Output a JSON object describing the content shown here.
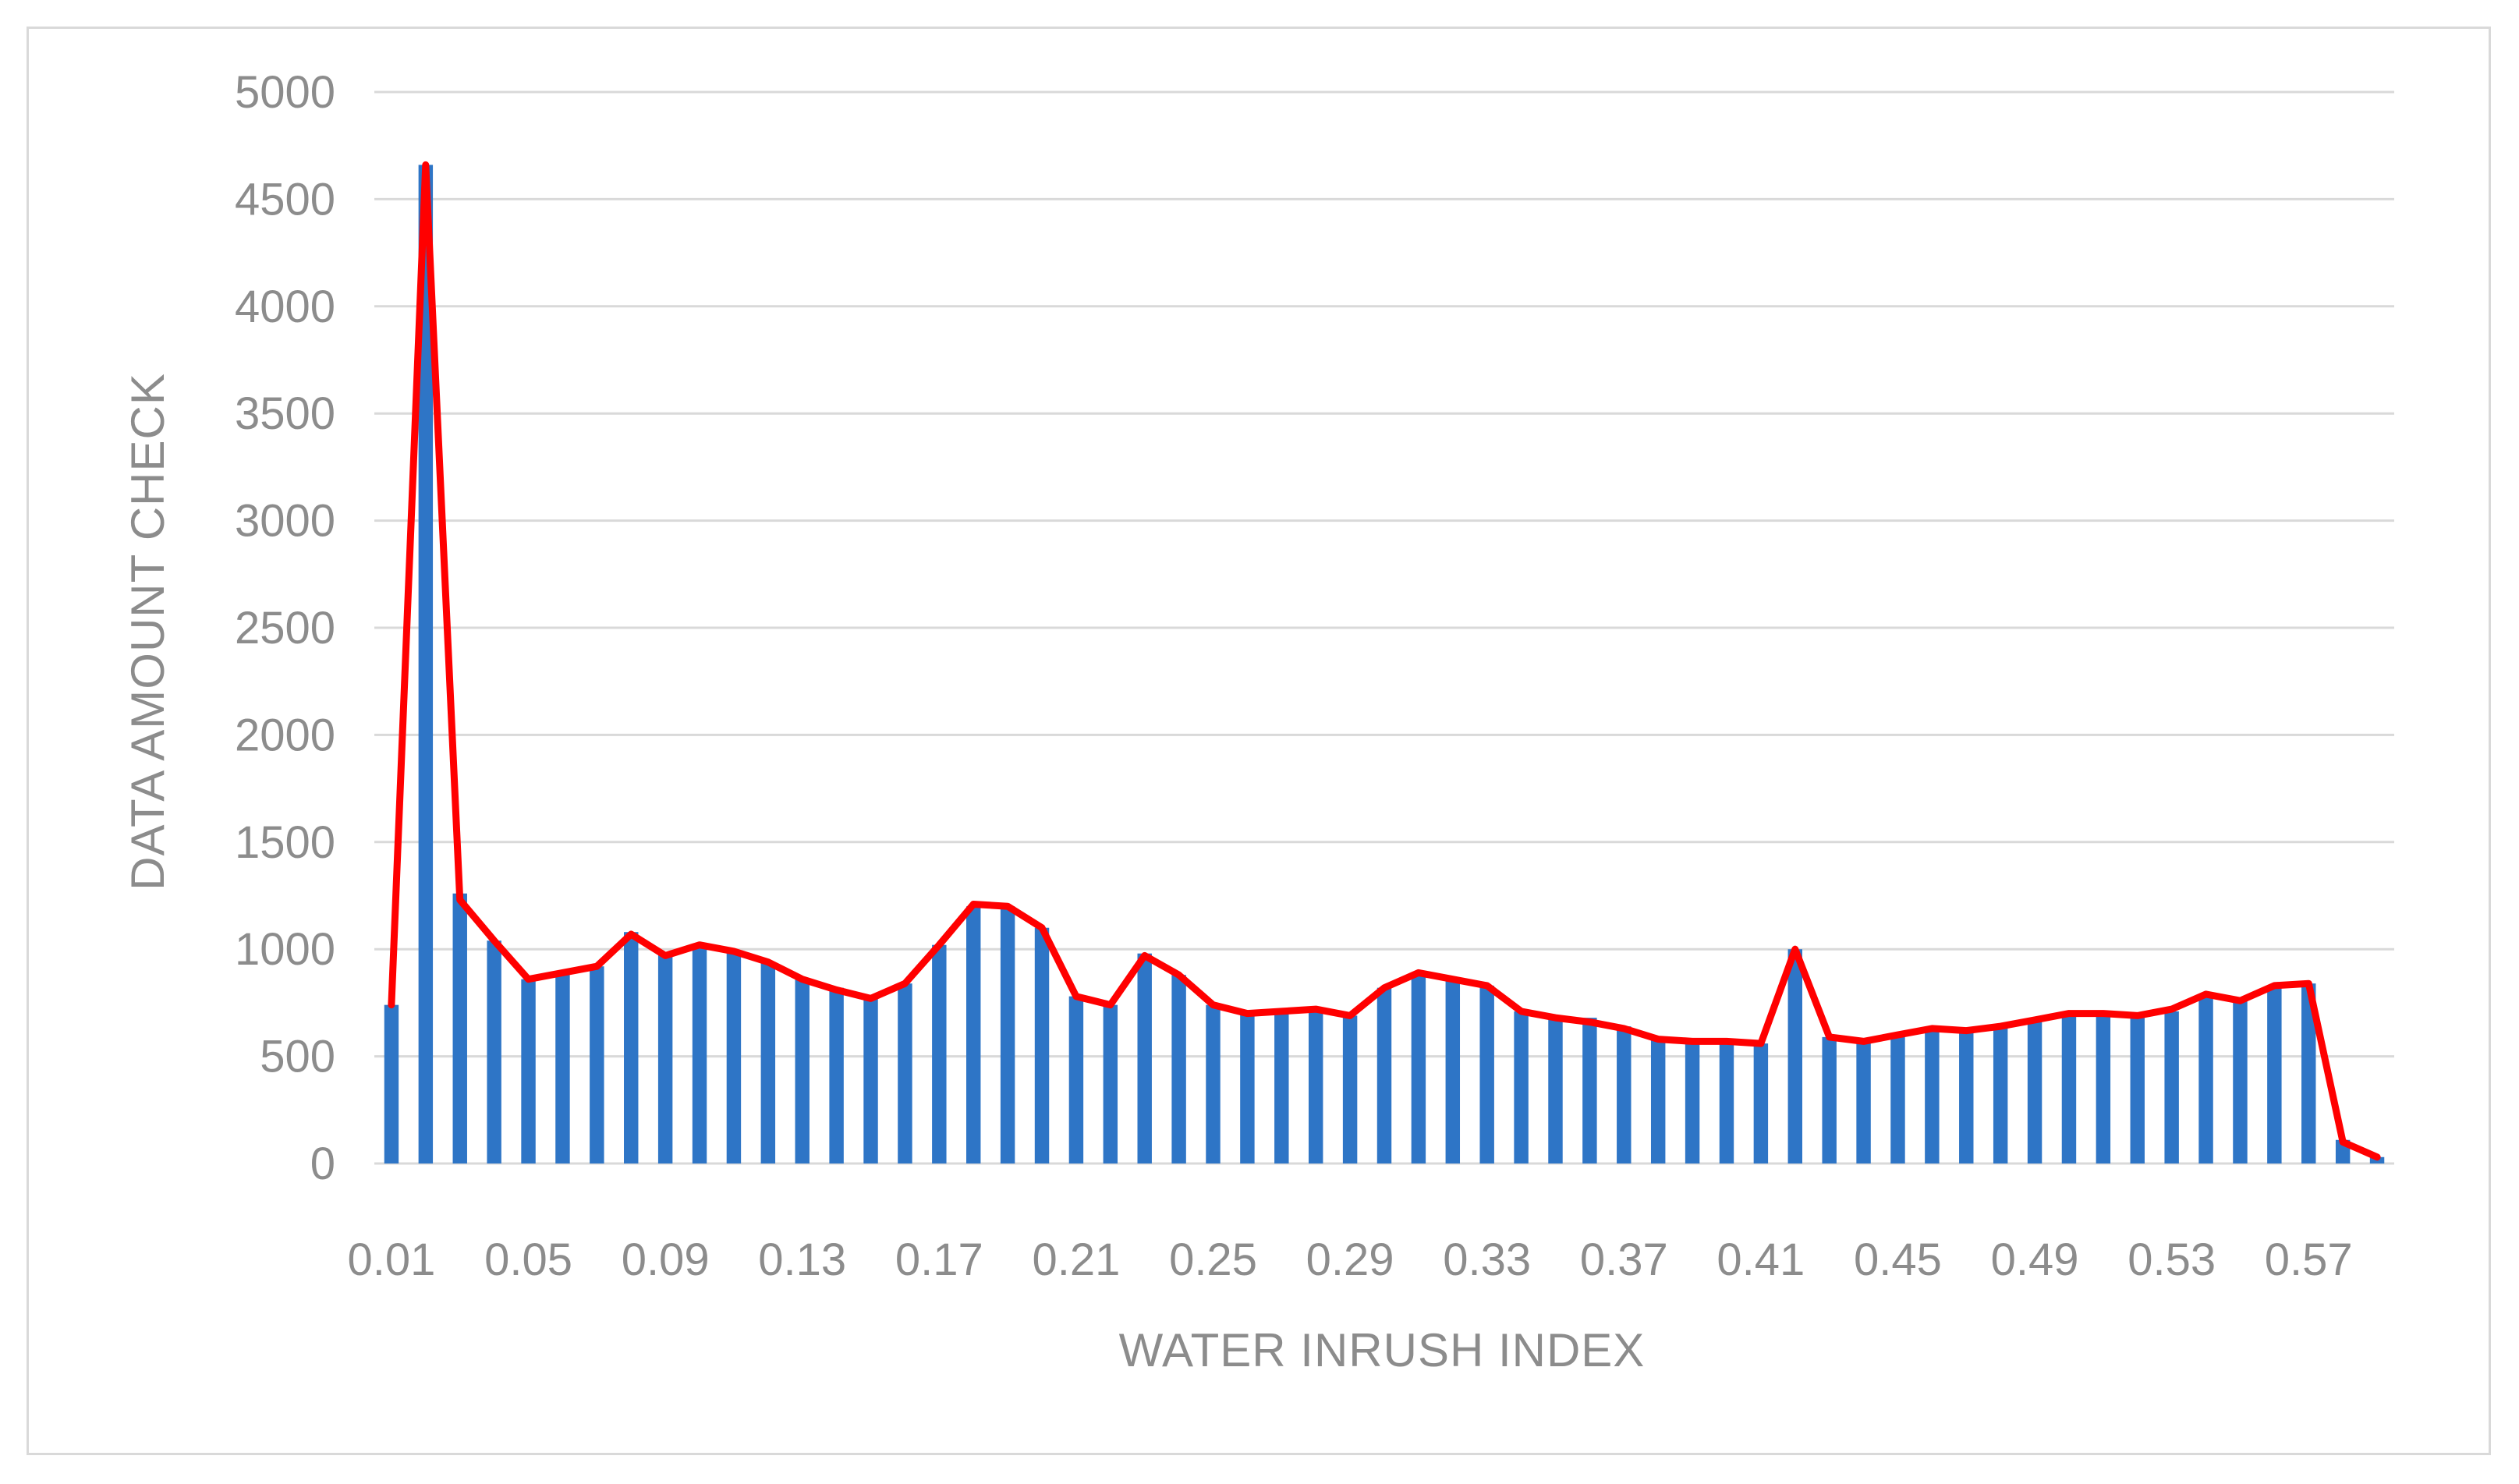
{
  "chart_data": {
    "type": "bar",
    "xlabel": "WATER INRUSH INDEX",
    "ylabel": "DATA AMOUNT CHECK",
    "ylim": [
      0,
      5000
    ],
    "yticks": [
      0,
      500,
      1000,
      1500,
      2000,
      2500,
      3000,
      3500,
      4000,
      4500,
      5000
    ],
    "grid": true,
    "categories": [
      "0.01",
      "0.02",
      "0.03",
      "0.04",
      "0.05",
      "0.06",
      "0.07",
      "0.08",
      "0.09",
      "0.10",
      "0.11",
      "0.12",
      "0.13",
      "0.14",
      "0.15",
      "0.16",
      "0.17",
      "0.18",
      "0.19",
      "0.20",
      "0.21",
      "0.22",
      "0.23",
      "0.24",
      "0.25",
      "0.26",
      "0.27",
      "0.28",
      "0.29",
      "0.30",
      "0.31",
      "0.32",
      "0.33",
      "0.34",
      "0.35",
      "0.36",
      "0.37",
      "0.38",
      "0.39",
      "0.40",
      "0.41",
      "0.42",
      "0.43",
      "0.44",
      "0.45",
      "0.46",
      "0.47",
      "0.48",
      "0.49",
      "0.50",
      "0.51",
      "0.52",
      "0.53",
      "0.54",
      "0.55",
      "0.56",
      "0.57",
      "0.58",
      "0.59"
    ],
    "xtick_labels": [
      "0.01",
      "0.05",
      "0.09",
      "0.13",
      "0.17",
      "0.21",
      "0.25",
      "0.29",
      "0.33",
      "0.37",
      "0.41",
      "0.45",
      "0.49",
      "0.53",
      "0.57"
    ],
    "xtick_every": 4,
    "series": [
      {
        "kind": "bar",
        "color": "#2e75c6",
        "values": [
          740,
          4660,
          1260,
          1040,
          860,
          880,
          920,
          1080,
          980,
          1020,
          990,
          940,
          860,
          820,
          780,
          840,
          1020,
          1200,
          1200,
          1100,
          780,
          740,
          980,
          880,
          740,
          700,
          700,
          720,
          690,
          820,
          880,
          860,
          830,
          710,
          690,
          680,
          640,
          580,
          570,
          570,
          560,
          1000,
          590,
          580,
          610,
          630,
          620,
          640,
          670,
          700,
          700,
          690,
          710,
          780,
          760,
          830,
          840,
          110,
          30
        ]
      },
      {
        "kind": "line",
        "color": "#ff0000",
        "values": [
          740,
          4660,
          1230,
          1040,
          860,
          890,
          920,
          1070,
          970,
          1020,
          990,
          940,
          860,
          810,
          770,
          840,
          1020,
          1210,
          1200,
          1100,
          780,
          740,
          970,
          880,
          740,
          700,
          710,
          720,
          690,
          820,
          890,
          860,
          830,
          710,
          680,
          660,
          630,
          580,
          570,
          570,
          560,
          1000,
          590,
          570,
          600,
          630,
          620,
          640,
          670,
          700,
          700,
          690,
          720,
          790,
          760,
          830,
          840,
          100,
          30
        ]
      }
    ]
  }
}
